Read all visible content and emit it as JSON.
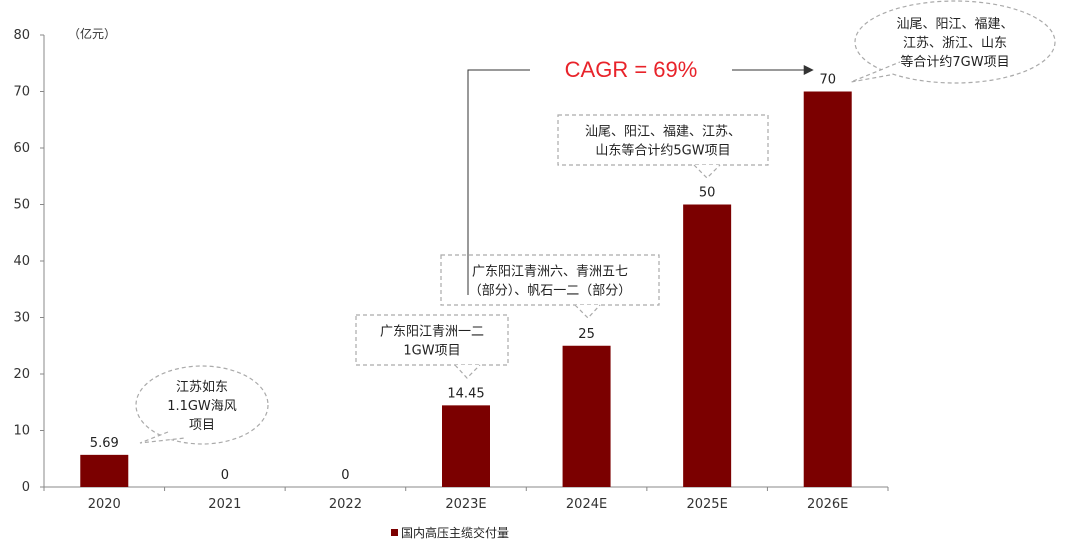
{
  "chart_data": {
    "type": "bar",
    "unit_label": "（亿元）",
    "categories": [
      "2020",
      "2021",
      "2022",
      "2023E",
      "2024E",
      "2025E",
      "2026E"
    ],
    "values": [
      5.69,
      0,
      0,
      14.45,
      25,
      50,
      70
    ],
    "value_labels": [
      "5.69",
      "0",
      "0",
      "14.45",
      "25",
      "50",
      "70"
    ],
    "ylim": [
      0,
      80
    ],
    "yticks": [
      0,
      10,
      20,
      30,
      40,
      50,
      60,
      70,
      80
    ],
    "series": [
      {
        "name": "国内高压主缆交付量",
        "values": [
          5.69,
          0,
          0,
          14.45,
          25,
          50,
          70
        ]
      }
    ],
    "legend_position": "bottom-center",
    "bar_color": "#7b0000",
    "annotation_color": "#e8232a",
    "cagr_label": "CAGR = 69%",
    "callouts": [
      {
        "category": "2020",
        "shape": "ellipse",
        "lines": [
          "江苏如东",
          "1.1GW海风",
          "项目"
        ]
      },
      {
        "category": "2023E",
        "shape": "rect",
        "lines": [
          "广东阳江青洲一二",
          "1GW项目"
        ]
      },
      {
        "category": "2024E",
        "shape": "rect",
        "lines": [
          "广东阳江青洲六、青洲五七",
          "（部分）、帆石一二（部分）"
        ]
      },
      {
        "category": "2025E",
        "shape": "rect",
        "lines": [
          "汕尾、阳江、福建、江苏、",
          "山东等合计约5GW项目"
        ]
      },
      {
        "category": "2026E",
        "shape": "ellipse",
        "lines": [
          "汕尾、阳江、福建、",
          "江苏、浙江、山东",
          "等合计约7GW项目"
        ]
      }
    ]
  }
}
